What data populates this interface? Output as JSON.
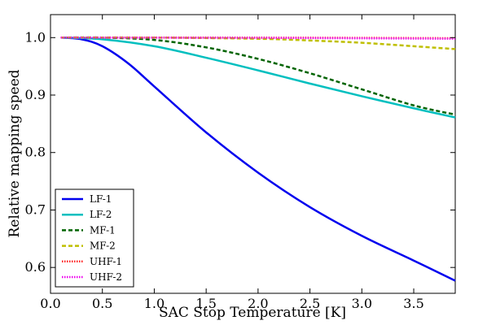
{
  "chart_data": {
    "type": "line",
    "title": "",
    "xlabel": "SAC Stop Temperature [K]",
    "ylabel": "Relative mapping speed",
    "xlim": [
      0.0,
      3.9
    ],
    "ylim": [
      0.555,
      1.04
    ],
    "x_ticks": [
      0.0,
      0.5,
      1.0,
      1.5,
      2.0,
      2.5,
      3.0,
      3.5
    ],
    "x_tick_labels": [
      "0.0",
      "0.5",
      "1.0",
      "1.5",
      "2.0",
      "2.5",
      "3.0",
      "3.5"
    ],
    "y_ticks": [
      0.6,
      0.7,
      0.8,
      0.9,
      1.0
    ],
    "y_tick_labels": [
      "0.6",
      "0.7",
      "0.8",
      "0.9",
      "1.0"
    ],
    "grid": false,
    "legend_position": "lower-left",
    "series": [
      {
        "name": "LF-1",
        "color": "#0000ee",
        "style": "solid",
        "x": [
          0.1,
          0.3,
          0.5,
          0.75,
          1.0,
          1.5,
          2.0,
          2.5,
          3.0,
          3.5,
          3.9
        ],
        "y": [
          1.0,
          0.997,
          0.985,
          0.955,
          0.915,
          0.835,
          0.765,
          0.705,
          0.655,
          0.612,
          0.577
        ]
      },
      {
        "name": "LF-2",
        "color": "#00bfbf",
        "style": "solid",
        "x": [
          0.1,
          0.5,
          1.0,
          1.5,
          2.0,
          2.5,
          3.0,
          3.5,
          3.9
        ],
        "y": [
          1.0,
          0.997,
          0.985,
          0.965,
          0.943,
          0.92,
          0.898,
          0.877,
          0.861
        ]
      },
      {
        "name": "MF-1",
        "color": "#006400",
        "style": "dashed",
        "x": [
          0.1,
          0.5,
          1.0,
          1.5,
          2.0,
          2.5,
          3.0,
          3.5,
          3.9
        ],
        "y": [
          1.0,
          1.0,
          0.996,
          0.983,
          0.963,
          0.938,
          0.91,
          0.882,
          0.866
        ]
      },
      {
        "name": "MF-2",
        "color": "#bfbf00",
        "style": "dashed",
        "x": [
          0.1,
          1.0,
          2.0,
          2.5,
          3.0,
          3.5,
          3.9
        ],
        "y": [
          1.0,
          1.0,
          0.998,
          0.995,
          0.991,
          0.985,
          0.98
        ]
      },
      {
        "name": "UHF-1",
        "color": "#ff2222",
        "style": "dotted",
        "x": [
          0.1,
          2.0,
          3.9
        ],
        "y": [
          1.0,
          1.0,
          0.999
        ]
      },
      {
        "name": "UHF-2",
        "color": "#ee00ee",
        "style": "dotted",
        "x": [
          0.1,
          2.0,
          3.9
        ],
        "y": [
          1.0,
          0.9995,
          0.998
        ]
      }
    ]
  }
}
